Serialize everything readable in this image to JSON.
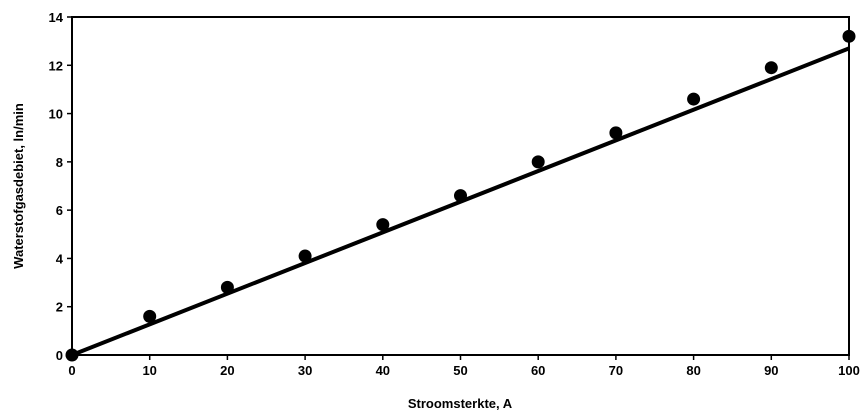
{
  "chart_data": {
    "type": "scatter",
    "title": "",
    "xlabel": "Stroomsterkte, A",
    "ylabel": "Waterstofgasdebiet, ln/min",
    "xlim": [
      0,
      100
    ],
    "ylim": [
      0,
      14
    ],
    "x_ticks": [
      0,
      10,
      20,
      30,
      40,
      50,
      60,
      70,
      80,
      90,
      100
    ],
    "y_ticks": [
      0,
      2,
      4,
      6,
      8,
      10,
      12,
      14
    ],
    "grid": false,
    "legend": "none",
    "series": [
      {
        "type": "scatter",
        "x": [
          0,
          10,
          20,
          30,
          40,
          50,
          60,
          70,
          80,
          90,
          100
        ],
        "y": [
          0,
          1.6,
          2.8,
          4.1,
          5.4,
          6.6,
          8.0,
          9.2,
          10.6,
          11.9,
          13.2
        ]
      },
      {
        "type": "line",
        "x": [
          0,
          100
        ],
        "y": [
          0,
          12.7
        ]
      }
    ],
    "colors": {
      "marks": "#000000",
      "axes": "#000000",
      "background": "#ffffff"
    }
  }
}
